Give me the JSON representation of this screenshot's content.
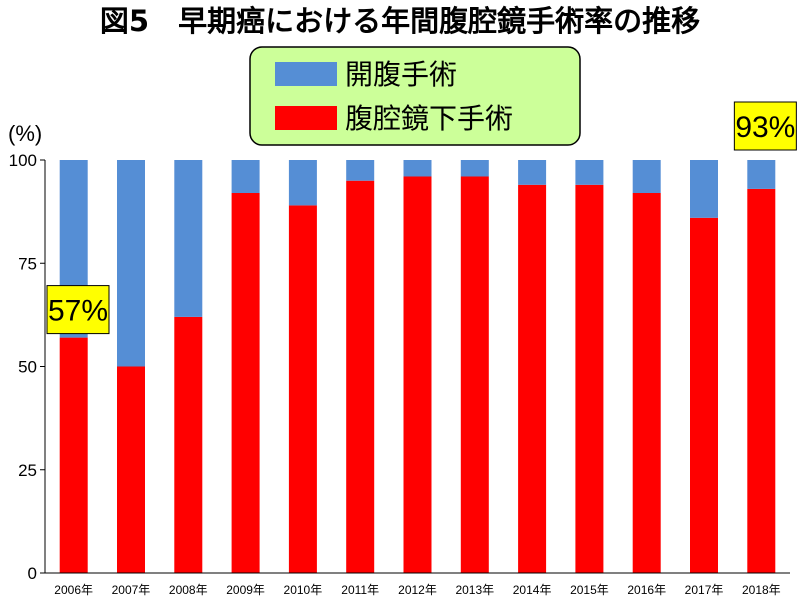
{
  "chart_data": {
    "type": "bar",
    "stacked": true,
    "title": "図5　早期癌における年間腹腔鏡手術率の推移",
    "ylabel": "(%)",
    "ylim": [
      0,
      100
    ],
    "yticks": [
      0,
      25,
      50,
      75,
      100
    ],
    "categories": [
      "2006年",
      "2007年",
      "2008年",
      "2009年",
      "2010年",
      "2011年",
      "2012年",
      "2013年",
      "2014年",
      "2015年",
      "2016年",
      "2017年",
      "2018年"
    ],
    "series": [
      {
        "name": "腹腔鏡下手術",
        "color": "#ff0000",
        "values": [
          57,
          50,
          62,
          92,
          89,
          95,
          96,
          96,
          94,
          94,
          92,
          86,
          93
        ]
      },
      {
        "name": "開腹手術",
        "color": "#558ed5",
        "values": [
          43,
          50,
          38,
          8,
          11,
          5,
          4,
          4,
          6,
          6,
          8,
          14,
          7
        ]
      }
    ],
    "legend": {
      "placement": "top",
      "background": "#ccff99",
      "entries": [
        "開腹手術",
        "腹腔鏡下手術"
      ]
    },
    "annotations": [
      {
        "text": "57%",
        "category": "2006年",
        "background": "#ffff00"
      },
      {
        "text": "93%",
        "category": "2018年",
        "background": "#ffff00"
      }
    ],
    "grid": false
  }
}
